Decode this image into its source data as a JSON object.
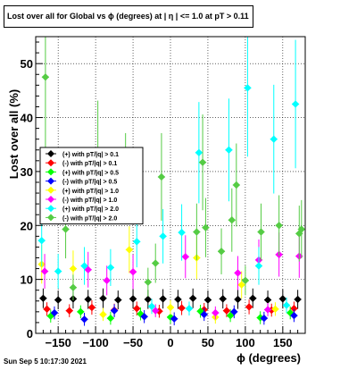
{
  "page": {
    "title": "Lost over all for Global vs ϕ (degrees) at |  η | <= 1.0 at pT > 0.11",
    "timestamp": "Sun Sep  5 10:17:30 2021"
  },
  "colors": {
    "black": "#000000",
    "red": "#ff0000",
    "green": "#00ff00",
    "blue": "#0000ff",
    "yellow": "#ffff00",
    "magenta": "#ff00ff",
    "cyan": "#00ffff",
    "olive_green": "#55cc44"
  },
  "chart_data": {
    "type": "scatter",
    "title": "Lost over all for Global vs ϕ (degrees) at |  η | <= 1.0 at pT > 0.11",
    "xlabel": "ϕ (degrees)",
    "ylabel": "Lost over all (%)",
    "xlim": [
      -180,
      180
    ],
    "ylim": [
      0,
      55
    ],
    "xticks": [
      -150,
      -100,
      -50,
      0,
      50,
      100,
      150
    ],
    "yticks": [
      0,
      10,
      20,
      30,
      40,
      50
    ],
    "grid": true,
    "legend_position": "left-middle",
    "series": [
      {
        "name": "(+) with pT/|q| > 0.1",
        "color": "#000000",
        "marker": "diamond",
        "points": [
          [
            -170,
            6.5
          ],
          [
            -150,
            6.2
          ],
          [
            -130,
            6.4
          ],
          [
            -110,
            6.3
          ],
          [
            -90,
            6.5
          ],
          [
            -70,
            6.2
          ],
          [
            -50,
            6.4
          ],
          [
            -30,
            6.3
          ],
          [
            -10,
            6.4
          ],
          [
            10,
            6.3
          ],
          [
            30,
            6.5
          ],
          [
            50,
            6.2
          ],
          [
            70,
            6.4
          ],
          [
            90,
            6.3
          ],
          [
            110,
            6.5
          ],
          [
            130,
            6.2
          ],
          [
            150,
            6.4
          ],
          [
            170,
            6.3
          ]
        ]
      },
      {
        "name": "(-) with pT/|q| > 0.1",
        "color": "#ff0000",
        "marker": "diamond",
        "points": [
          [
            -165,
            4.5
          ],
          [
            -135,
            4.2
          ],
          [
            -105,
            4.8
          ],
          [
            -75,
            4.3
          ],
          [
            -45,
            4.6
          ],
          [
            -15,
            4.1
          ],
          [
            15,
            4.7
          ],
          [
            45,
            4.4
          ],
          [
            75,
            4.2
          ],
          [
            105,
            4.9
          ],
          [
            135,
            4.3
          ],
          [
            165,
            4.6
          ]
        ]
      },
      {
        "name": "(+) with pT/|q| > 0.5",
        "color": "#00ff00",
        "marker": "diamond",
        "points": [
          [
            -160,
            3.2
          ],
          [
            -120,
            4.0
          ],
          [
            -80,
            2.8
          ],
          [
            -40,
            3.6
          ],
          [
            0,
            3.0
          ],
          [
            40,
            4.1
          ],
          [
            80,
            3.3
          ],
          [
            120,
            2.9
          ],
          [
            160,
            3.8
          ]
        ]
      },
      {
        "name": "(-) with pT/|q| > 0.5",
        "color": "#0000ff",
        "marker": "diamond",
        "points": [
          [
            -155,
            3.8
          ],
          [
            -115,
            2.6
          ],
          [
            -75,
            4.2
          ],
          [
            -35,
            3.1
          ],
          [
            5,
            2.7
          ],
          [
            45,
            3.5
          ],
          [
            85,
            4.0
          ],
          [
            125,
            2.8
          ],
          [
            165,
            3.3
          ]
        ]
      },
      {
        "name": "(+) with pT/|q| > 1.0",
        "color": "#ffff00",
        "marker": "diamond",
        "points": [
          [
            -172,
            12.8
          ],
          [
            -130,
            12.0
          ],
          [
            -55,
            15.5
          ],
          [
            35,
            14.0
          ],
          [
            95,
            9.0
          ],
          [
            140,
            4.5
          ],
          [
            -90,
            3.5
          ],
          [
            0,
            4.8
          ],
          [
            60,
            3.0
          ]
        ]
      },
      {
        "name": "(-) with pT/|q| > 1.0",
        "color": "#ff00ff",
        "marker": "diamond",
        "points": [
          [
            -168,
            11.5
          ],
          [
            -110,
            11.8
          ],
          [
            -85,
            9.8
          ],
          [
            -50,
            11.4
          ],
          [
            20,
            14.2
          ],
          [
            90,
            11.2
          ],
          [
            118,
            13.6
          ],
          [
            145,
            14.6
          ],
          [
            172,
            14.3
          ],
          [
            -20,
            4.2
          ],
          [
            60,
            3.8
          ],
          [
            130,
            4.4
          ]
        ]
      },
      {
        "name": "(+) with pT/|q| > 2.0",
        "color": "#00ffff",
        "marker": "diamond",
        "points": [
          [
            -172,
            17.2
          ],
          [
            -150,
            11.5
          ],
          [
            -115,
            12.5
          ],
          [
            -80,
            12.2
          ],
          [
            -45,
            17.0
          ],
          [
            -10,
            18.0
          ],
          [
            15,
            18.7
          ],
          [
            38,
            33.5
          ],
          [
            78,
            34.0
          ],
          [
            103,
            45.5
          ],
          [
            118,
            12.5
          ],
          [
            138,
            36.0
          ],
          [
            167,
            42.5
          ],
          [
            -25,
            5.0
          ],
          [
            25,
            4.6
          ],
          [
            155,
            5.2
          ]
        ]
      },
      {
        "name": "(-) with pT/|q| > 2.0",
        "color": "#55cc44",
        "marker": "diamond",
        "points": [
          [
            -167,
            47.5
          ],
          [
            -140,
            19.3
          ],
          [
            -97,
            33.7
          ],
          [
            -60,
            29.0
          ],
          [
            -12,
            29.0
          ],
          [
            -20,
            13.0
          ],
          [
            35,
            18.8
          ],
          [
            43,
            31.7
          ],
          [
            47,
            19.6
          ],
          [
            68,
            15.2
          ],
          [
            82,
            21.0
          ],
          [
            88,
            27.5
          ],
          [
            121,
            18.8
          ],
          [
            145,
            20.0
          ],
          [
            172,
            18.5
          ],
          [
            175,
            19.3
          ],
          [
            -130,
            8.5
          ],
          [
            -30,
            9.5
          ],
          [
            100,
            9.8
          ]
        ]
      }
    ]
  }
}
